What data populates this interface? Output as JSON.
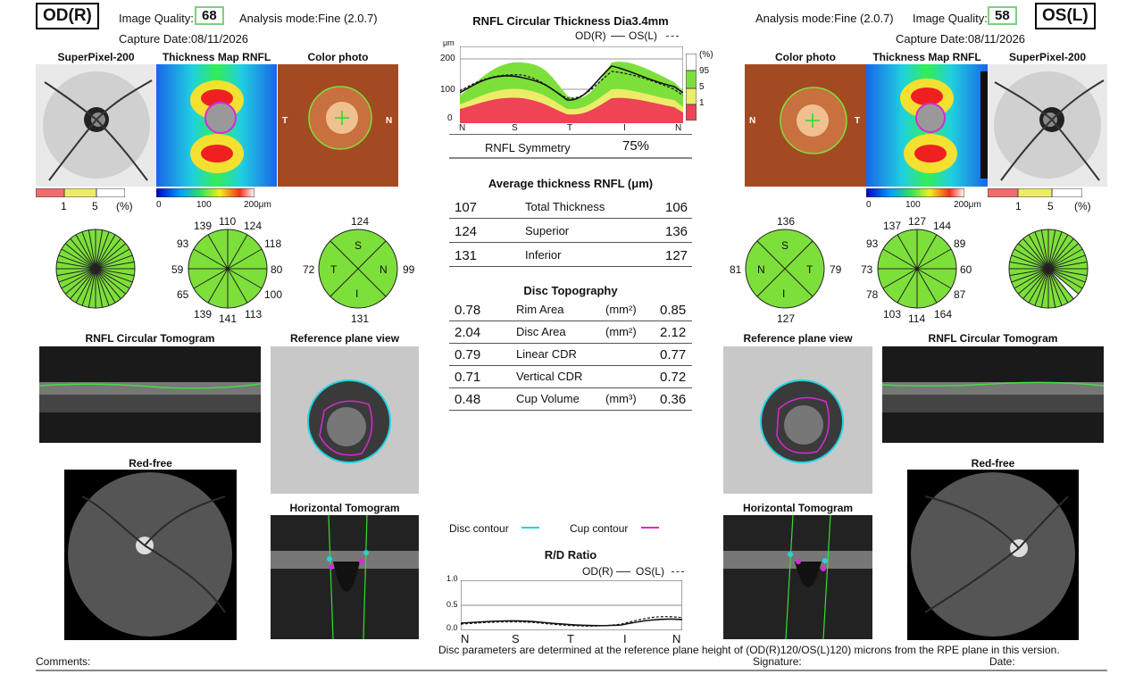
{
  "od": {
    "eye": "OD(R)",
    "quality_label": "Image Quality:",
    "quality": "68",
    "mode": "Analysis mode:Fine (2.0.7)",
    "capture": "Capture Date:08/11/2026",
    "clock": {
      "t": "139",
      "tn": "110",
      "tr": "124",
      "rt": "118",
      "r": "80",
      "rb": "100",
      "b1": "113",
      "b2": "141",
      "b3": "139",
      "lb": "65",
      "l": "59",
      "lt": "93"
    },
    "quad": {
      "top": "124",
      "left": "72",
      "right": "99",
      "bottom": "131",
      "S": "S",
      "T": "T",
      "N": "N",
      "I": "I"
    }
  },
  "os": {
    "eye": "OS(L)",
    "quality_label": "Image Quality:",
    "quality": "58",
    "mode": "Analysis mode:Fine (2.0.7)",
    "capture": "Capture Date:08/11/2026",
    "clock": {
      "t": "137",
      "tn": "127",
      "tr": "144",
      "rt": "89",
      "r": "60",
      "rb": "87",
      "b1": "164",
      "b2": "114",
      "b3": "103",
      "lb": "78",
      "l": "73",
      "lt": "93"
    },
    "quad": {
      "top": "136",
      "left": "81",
      "right": "79",
      "bottom": "127",
      "S": "S",
      "T": "T",
      "N": "N",
      "I": "I"
    }
  },
  "labels": {
    "superpixel": "SuperPixel-200",
    "thickness_map": "Thickness Map RNFL",
    "color_photo": "Color photo",
    "rnfl_tomogram": "RNFL Circular Tomogram",
    "ref_plane": "Reference plane view",
    "red_free": "Red-free",
    "horiz_tomogram": "Horizontal Tomogram",
    "T": "T",
    "N": "N",
    "pct_1": "1",
    "pct_5": "5",
    "pct_unit": "(%)",
    "scale_0": "0",
    "scale_100": "100",
    "scale_200": "200μm"
  },
  "center": {
    "rnfl_title": "RNFL Circular Thickness Dia3.4mm",
    "legend_od": "OD(R)",
    "legend_os": "OS(L)",
    "y_unit": "μm",
    "y_ticks": [
      "200",
      "100",
      "0"
    ],
    "x_ticks": [
      "N",
      "S",
      "T",
      "I",
      "N"
    ],
    "pct_scale": [
      "(%)",
      "95",
      "5",
      "1"
    ],
    "symmetry_label": "RNFL Symmetry",
    "symmetry_value": "75%",
    "avg_title": "Average thickness RNFL (μm)",
    "avg_rows": [
      {
        "od": "107",
        "label": "Total Thickness",
        "os": "106"
      },
      {
        "od": "124",
        "label": "Superior",
        "os": "136"
      },
      {
        "od": "131",
        "label": "Inferior",
        "os": "127"
      }
    ],
    "disc_title": "Disc Topography",
    "disc_rows": [
      {
        "od": "0.78",
        "label": "Rim Area",
        "unit": "(mm²)",
        "os": "0.85"
      },
      {
        "od": "2.04",
        "label": "Disc Area",
        "unit": "(mm²)",
        "os": "2.12"
      },
      {
        "od": "0.79",
        "label": "Linear CDR",
        "unit": "",
        "os": "0.77"
      },
      {
        "od": "0.71",
        "label": "Vertical CDR",
        "unit": "",
        "os": "0.72"
      },
      {
        "od": "0.48",
        "label": "Cup Volume",
        "unit": "(mm³)",
        "os": "0.36"
      }
    ],
    "disc_contour": "Disc contour",
    "cup_contour": "Cup contour",
    "rd_title": "R/D Ratio",
    "rd_y": [
      "1.0",
      "0.5",
      "0.0"
    ],
    "rd_x": [
      "N",
      "S",
      "T",
      "I",
      "N"
    ]
  },
  "footer": {
    "note": "Disc parameters are determined at the reference plane height of (OD(R)120/OS(L)120) microns from the RPE plane in this version.",
    "comments": "Comments:",
    "signature": "Signature:",
    "date": "Date:"
  },
  "colors": {
    "disc": "#22d3e0",
    "cup": "#d62ad6",
    "normal": "#7de03a",
    "border": "#e8e86a",
    "abnormal": "#ee4455",
    "quality_box": "#7fd07f"
  }
}
